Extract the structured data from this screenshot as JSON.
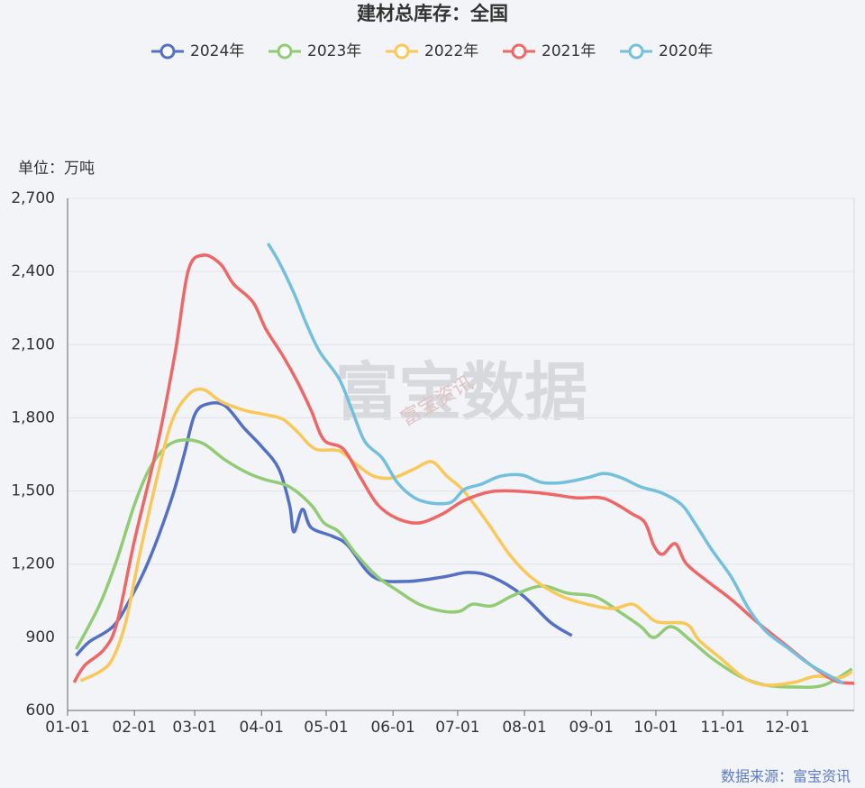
{
  "chart_data": {
    "type": "line",
    "title": "建材总库存：全国",
    "y_label": "单位：万吨",
    "source": "数据来源：富宝资讯",
    "watermark": "富宝数据",
    "watermark_sub": "富宝资讯",
    "xlim": [
      0,
      365
    ],
    "xticks": [
      {
        "value": 0,
        "label": "01-01"
      },
      {
        "value": 31,
        "label": "02-01"
      },
      {
        "value": 59,
        "label": "03-01"
      },
      {
        "value": 90,
        "label": "04-01"
      },
      {
        "value": 120,
        "label": "05-01"
      },
      {
        "value": 151,
        "label": "06-01"
      },
      {
        "value": 181,
        "label": "07-01"
      },
      {
        "value": 212,
        "label": "08-01"
      },
      {
        "value": 243,
        "label": "09-01"
      },
      {
        "value": 273,
        "label": "10-01"
      },
      {
        "value": 304,
        "label": "11-01"
      },
      {
        "value": 334,
        "label": "12-01"
      }
    ],
    "ylim": [
      600,
      2700
    ],
    "yticks": [
      600,
      900,
      {
        "value": 1200,
        "label": "1,200"
      },
      {
        "value": 1500,
        "label": "1,500"
      },
      {
        "value": 1800,
        "label": "1,800"
      },
      {
        "value": 2100,
        "label": "2,100"
      },
      {
        "value": 2400,
        "label": "2,400"
      },
      {
        "value": 2700,
        "label": "2,700"
      }
    ],
    "grid": true,
    "series": [
      {
        "name": "2024年",
        "color": "#5470c6",
        "x": [
          4,
          10,
          21,
          29,
          38,
          48,
          54,
          59,
          65,
          73,
          82,
          90,
          98,
          103,
          105,
          109,
          113,
          123,
          130,
          142,
          157,
          174,
          186,
          197,
          211,
          224,
          234
        ],
        "values": [
          825,
          881,
          944,
          1055,
          1221,
          1461,
          1646,
          1813,
          1857,
          1850,
          1757,
          1683,
          1591,
          1443,
          1332,
          1425,
          1350,
          1314,
          1277,
          1147,
          1129,
          1147,
          1166,
          1147,
          1073,
          962,
          907
        ]
      },
      {
        "name": "2023年",
        "color": "#91cc75",
        "x": [
          4,
          15,
          23,
          31,
          38,
          46,
          54,
          63,
          73,
          84,
          92,
          103,
          113,
          119,
          126,
          134,
          144,
          153,
          163,
          174,
          182,
          188,
          197,
          207,
          220,
          232,
          245,
          257,
          266,
          272,
          280,
          289,
          299,
          312,
          324,
          337,
          351,
          364
        ],
        "values": [
          851,
          1036,
          1221,
          1443,
          1591,
          1683,
          1709,
          1694,
          1628,
          1572,
          1546,
          1517,
          1443,
          1369,
          1332,
          1240,
          1147,
          1092,
          1036,
          1007,
          1007,
          1036,
          1029,
          1073,
          1110,
          1081,
          1066,
          999,
          944,
          899,
          944,
          888,
          814,
          740,
          704,
          696,
          704,
          770
        ]
      },
      {
        "name": "2022年",
        "color": "#fac858",
        "x": [
          6,
          15,
          21,
          27,
          33,
          40,
          48,
          56,
          63,
          71,
          82,
          92,
          100,
          107,
          115,
          126,
          134,
          142,
          151,
          161,
          169,
          176,
          184,
          195,
          205,
          215,
          228,
          241,
          253,
          262,
          268,
          274,
          287,
          293,
          303,
          314,
          324,
          337,
          347,
          358,
          364
        ],
        "values": [
          722,
          759,
          814,
          962,
          1221,
          1498,
          1776,
          1894,
          1916,
          1868,
          1831,
          1813,
          1794,
          1739,
          1672,
          1665,
          1609,
          1561,
          1554,
          1591,
          1620,
          1561,
          1498,
          1369,
          1240,
          1147,
          1073,
          1036,
          1018,
          1036,
          999,
          962,
          955,
          888,
          814,
          733,
          704,
          715,
          740,
          733,
          759
        ]
      },
      {
        "name": "2021年",
        "color": "#ee6666",
        "x": [
          3,
          8,
          17,
          23,
          31,
          42,
          50,
          56,
          63,
          71,
          77,
          86,
          92,
          100,
          107,
          113,
          119,
          128,
          136,
          144,
          153,
          163,
          174,
          184,
          197,
          211,
          224,
          236,
          249,
          262,
          268,
          272,
          276,
          282,
          287,
          297,
          308,
          320,
          333,
          345,
          356,
          365
        ],
        "values": [
          715,
          785,
          851,
          962,
          1295,
          1702,
          2071,
          2404,
          2467,
          2430,
          2349,
          2275,
          2164,
          2053,
          1942,
          1831,
          1709,
          1672,
          1554,
          1443,
          1387,
          1369,
          1406,
          1461,
          1498,
          1498,
          1487,
          1472,
          1469,
          1406,
          1369,
          1277,
          1240,
          1284,
          1203,
          1129,
          1055,
          962,
          870,
          785,
          722,
          711
        ]
      },
      {
        "name": "2020年",
        "color": "#73c0de",
        "x": [
          93,
          98,
          105,
          111,
          117,
          126,
          132,
          138,
          146,
          153,
          161,
          169,
          178,
          184,
          192,
          201,
          211,
          220,
          230,
          241,
          249,
          257,
          266,
          276,
          285,
          291,
          299,
          308,
          316,
          324,
          335,
          345,
          360
        ],
        "values": [
          2515,
          2441,
          2312,
          2182,
          2071,
          1960,
          1831,
          1702,
          1635,
          1535,
          1472,
          1450,
          1454,
          1506,
          1528,
          1561,
          1565,
          1535,
          1535,
          1554,
          1572,
          1554,
          1517,
          1491,
          1443,
          1369,
          1258,
          1147,
          1018,
          925,
          851,
          785,
          711
        ]
      }
    ]
  }
}
